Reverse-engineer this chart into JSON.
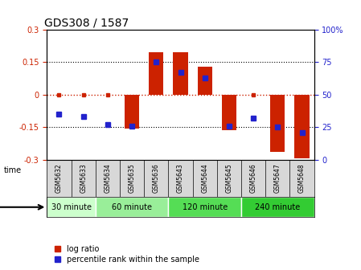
{
  "title": "GDS308 / 1587",
  "samples": [
    "GSM5632",
    "GSM5633",
    "GSM5634",
    "GSM5635",
    "GSM5636",
    "GSM5643",
    "GSM5644",
    "GSM5645",
    "GSM5646",
    "GSM5647",
    "GSM5648"
  ],
  "log_ratio": [
    0.005,
    0.005,
    0.005,
    -0.155,
    0.195,
    0.195,
    0.13,
    -0.165,
    0.005,
    -0.265,
    -0.295
  ],
  "percentile": [
    35,
    33,
    27,
    26,
    75,
    67,
    63,
    26,
    32,
    25,
    21
  ],
  "groups": [
    {
      "label": "30 minute",
      "start": 0,
      "end": 2,
      "color": "#ccffcc"
    },
    {
      "label": "60 minute",
      "start": 2,
      "end": 5,
      "color": "#99ee99"
    },
    {
      "label": "120 minute",
      "start": 5,
      "end": 8,
      "color": "#55dd55"
    },
    {
      "label": "240 minute",
      "start": 8,
      "end": 11,
      "color": "#33cc33"
    }
  ],
  "ylim": [
    -0.3,
    0.3
  ],
  "yticks": [
    -0.3,
    -0.15,
    0.0,
    0.15,
    0.3
  ],
  "ytick_labels_left": [
    "-0.3",
    "-0.15",
    "0",
    "0.15",
    "0.3"
  ],
  "ytick_labels_right": [
    "0",
    "25",
    "50",
    "75",
    "100%"
  ],
  "bar_color": "#cc2200",
  "dot_color": "#2222cc",
  "bg_color": "#ffffff",
  "label_log": "log ratio",
  "label_pct": "percentile rank within the sample",
  "time_label": "time"
}
